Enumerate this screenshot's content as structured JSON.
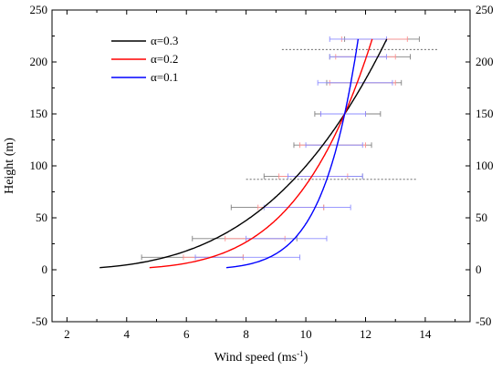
{
  "chart_data": {
    "type": "line",
    "xlabel_main": "Wind speed (ms",
    "xlabel_sup": "-1",
    "xlabel_tail": ")",
    "ylabel": "Height (m)",
    "xlim": [
      1.5,
      15.5
    ],
    "ylim": [
      -50,
      250
    ],
    "xticks": [
      2,
      4,
      6,
      8,
      10,
      12,
      14
    ],
    "yticks": [
      -50,
      0,
      50,
      100,
      150,
      200,
      250
    ],
    "ref_height": 150,
    "ref_speed": 11.3,
    "series": [
      {
        "name": "α=0.3",
        "alpha": 0.3,
        "color": "#000000"
      },
      {
        "name": "α=0.2",
        "alpha": 0.2,
        "color": "#ff0000"
      },
      {
        "name": "α=0.1",
        "alpha": 0.1,
        "color": "#0000ff"
      }
    ],
    "error_bars": [
      {
        "height": 222,
        "black": [
          11.3,
          13.8
        ],
        "red": [
          11.2,
          13.4
        ],
        "blue": [
          10.8,
          12.7
        ]
      },
      {
        "height": 205,
        "black": [
          10.8,
          13.5
        ],
        "red": [
          11.0,
          13.0
        ],
        "blue": [
          10.8,
          12.7
        ]
      },
      {
        "height": 180,
        "black": [
          10.7,
          13.2
        ],
        "red": [
          10.8,
          13.0
        ],
        "blue": [
          10.4,
          12.9
        ]
      },
      {
        "height": 150,
        "black": [
          10.3,
          12.5
        ],
        "red": [
          10.5,
          12.0
        ],
        "blue": [
          10.5,
          12.0
        ]
      },
      {
        "height": 120,
        "black": [
          9.6,
          12.2
        ],
        "red": [
          9.8,
          12.0
        ],
        "blue": [
          10.0,
          11.9
        ]
      },
      {
        "height": 90,
        "black": [
          8.6,
          11.9
        ],
        "red": [
          9.1,
          11.4
        ],
        "blue": [
          9.4,
          11.9
        ]
      },
      {
        "height": 60,
        "black": [
          7.5,
          10.6
        ],
        "red": [
          8.4,
          10.6
        ],
        "blue": [
          8.6,
          11.5
        ]
      },
      {
        "height": 30,
        "black": [
          6.2,
          9.7
        ],
        "red": [
          7.3,
          9.3
        ],
        "blue": [
          8.0,
          10.7
        ]
      },
      {
        "height": 12,
        "black": [
          4.5,
          7.9
        ],
        "red": [
          5.9,
          7.9
        ],
        "blue": [
          6.3,
          9.8
        ]
      }
    ],
    "dashed_lines": [
      {
        "height": 212,
        "x": [
          9.2,
          14.4
        ]
      },
      {
        "height": 87,
        "x": [
          8.0,
          13.7
        ]
      }
    ]
  }
}
